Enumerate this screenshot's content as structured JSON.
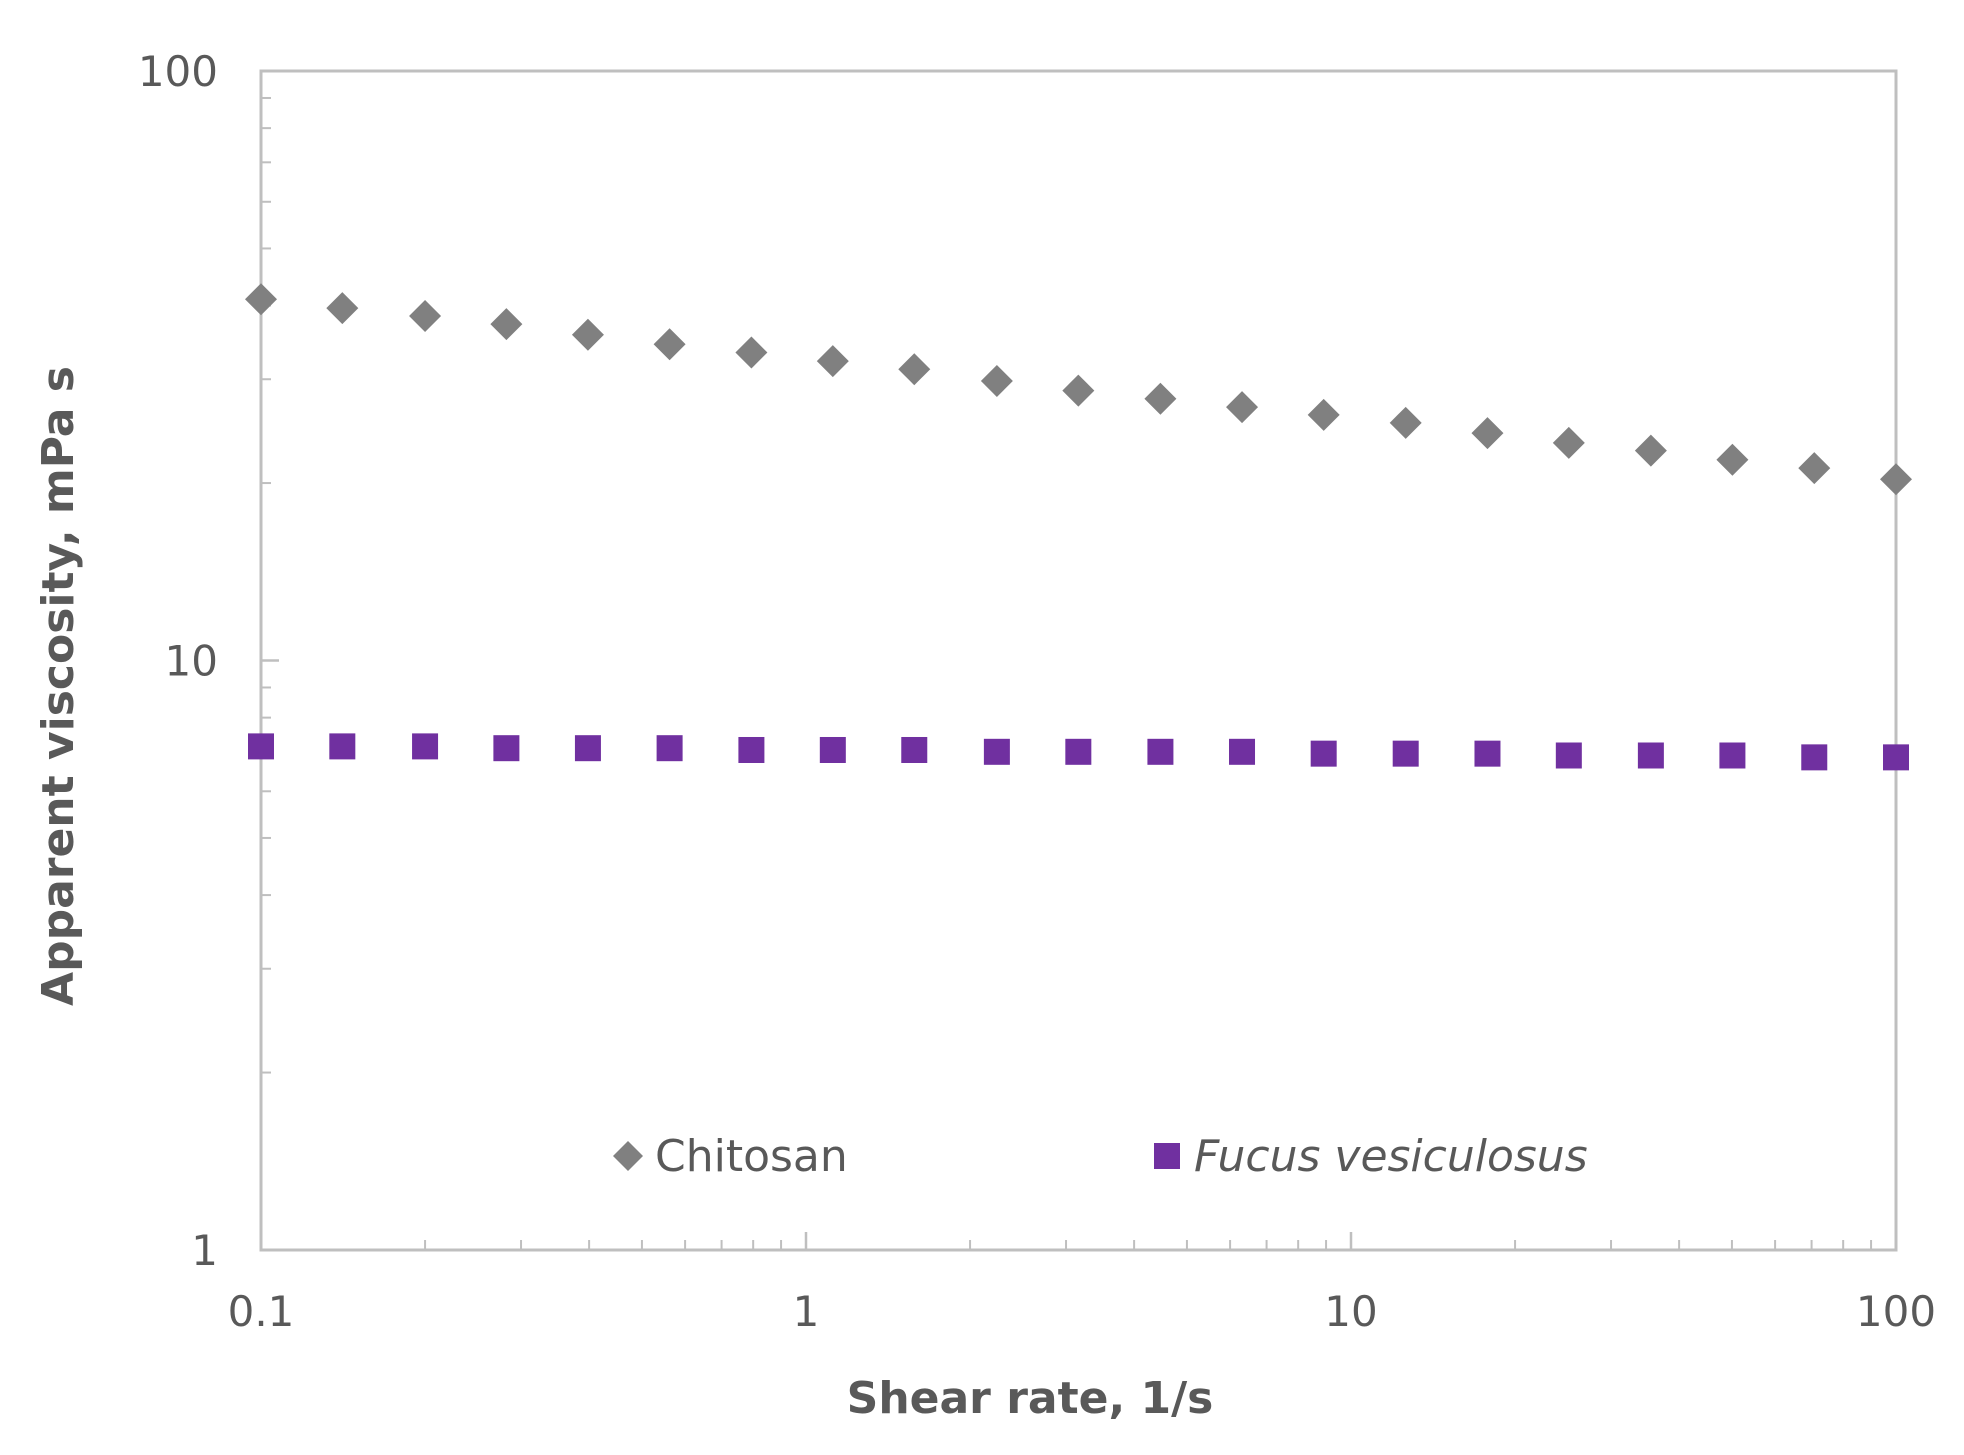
{
  "chart_data": {
    "type": "scatter",
    "title": "",
    "xlabel": "Shear rate, 1/s",
    "ylabel": "Apparent viscosity, mPa s",
    "xscale": "log",
    "yscale": "log",
    "xlim": [
      0.1,
      100
    ],
    "ylim": [
      1,
      100
    ],
    "x_ticks": [
      0.1,
      1,
      10,
      100
    ],
    "x_tick_labels": [
      "0.1",
      "1",
      "10",
      "100"
    ],
    "y_ticks": [
      1,
      10,
      100
    ],
    "y_tick_labels": [
      "1",
      "10",
      "100"
    ],
    "grid": false,
    "legend_position": "bottom-center",
    "series": [
      {
        "name": "Chitosan",
        "marker": "diamond",
        "color": "#808080",
        "italic": false,
        "x": [
          0.1,
          0.141,
          0.2,
          0.282,
          0.398,
          0.562,
          0.794,
          1.12,
          1.58,
          2.24,
          3.16,
          4.47,
          6.31,
          8.91,
          12.6,
          17.8,
          25.1,
          35.5,
          50.1,
          70.8,
          100
        ],
        "y": [
          41.0,
          39.6,
          38.4,
          37.2,
          35.7,
          34.4,
          33.3,
          32.2,
          31.2,
          29.8,
          28.7,
          27.8,
          26.9,
          26.1,
          25.3,
          24.3,
          23.4,
          22.7,
          21.9,
          21.2,
          20.3
        ]
      },
      {
        "name": "Fucus vesiculosus",
        "marker": "square",
        "color": "#7030a0",
        "italic": true,
        "x": [
          0.1,
          0.141,
          0.2,
          0.282,
          0.398,
          0.562,
          0.794,
          1.12,
          1.58,
          2.24,
          3.16,
          4.47,
          6.31,
          8.91,
          12.6,
          17.8,
          25.1,
          35.5,
          50.1,
          70.8,
          100
        ],
        "y": [
          7.15,
          7.15,
          7.15,
          7.1,
          7.1,
          7.1,
          7.05,
          7.05,
          7.05,
          7.0,
          7.0,
          7.0,
          7.0,
          6.95,
          6.95,
          6.95,
          6.9,
          6.9,
          6.9,
          6.85,
          6.85
        ]
      }
    ]
  },
  "colors": {
    "axis": "#bfbfbf",
    "text": "#595959"
  }
}
